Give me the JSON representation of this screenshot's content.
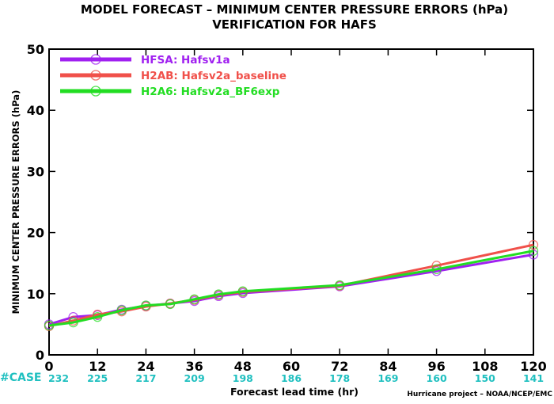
{
  "chart_data": {
    "type": "line",
    "title": "MODEL FORECAST – MINIMUM CENTER PRESSURE ERRORS (hPa)",
    "subtitle": "VERIFICATION FOR HAFS",
    "xlabel": "Forecast lead time (hr)",
    "ylabel": "MINIMUM CENTER PRESSURE ERRORS (hPa)",
    "xlim": [
      0,
      120
    ],
    "ylim": [
      0,
      50
    ],
    "x_ticks": [
      0,
      12,
      24,
      36,
      48,
      60,
      72,
      84,
      96,
      108,
      120
    ],
    "y_ticks": [
      0,
      10,
      20,
      30,
      40,
      50
    ],
    "grid": false,
    "legend_position": "top-left",
    "case_label": "#CASE",
    "cases": [
      {
        "x": 0,
        "n": "232"
      },
      {
        "x": 12,
        "n": "225"
      },
      {
        "x": 24,
        "n": "217"
      },
      {
        "x": 36,
        "n": "209"
      },
      {
        "x": 48,
        "n": "198"
      },
      {
        "x": 60,
        "n": "186"
      },
      {
        "x": 72,
        "n": "178"
      },
      {
        "x": 84,
        "n": "169"
      },
      {
        "x": 96,
        "n": "160"
      },
      {
        "x": 108,
        "n": "150"
      },
      {
        "x": 120,
        "n": "141"
      }
    ],
    "credit": "Hurricane project – NOAA/NCEP/EMC",
    "x": [
      0,
      6,
      12,
      18,
      24,
      30,
      36,
      42,
      48,
      72,
      96,
      120
    ],
    "series": [
      {
        "name": "HFSA:  Hafsv1a",
        "color": "#a020f0",
        "values": [
          5.0,
          6.2,
          6.5,
          7.4,
          8.0,
          8.4,
          8.8,
          9.6,
          10.1,
          11.2,
          13.7,
          16.4
        ]
      },
      {
        "name": "H2AB:  Hafsv2a_baseline",
        "color": "#f0504a",
        "values": [
          4.7,
          5.6,
          6.6,
          7.1,
          7.9,
          8.4,
          9.0,
          9.8,
          10.3,
          11.3,
          14.6,
          18.0
        ]
      },
      {
        "name": "H2A6:  Hafsv2a_BF6exp",
        "color": "#22dd22",
        "values": [
          4.8,
          5.3,
          6.2,
          7.3,
          8.1,
          8.3,
          9.1,
          9.9,
          10.4,
          11.4,
          14.0,
          17.0
        ]
      }
    ]
  }
}
